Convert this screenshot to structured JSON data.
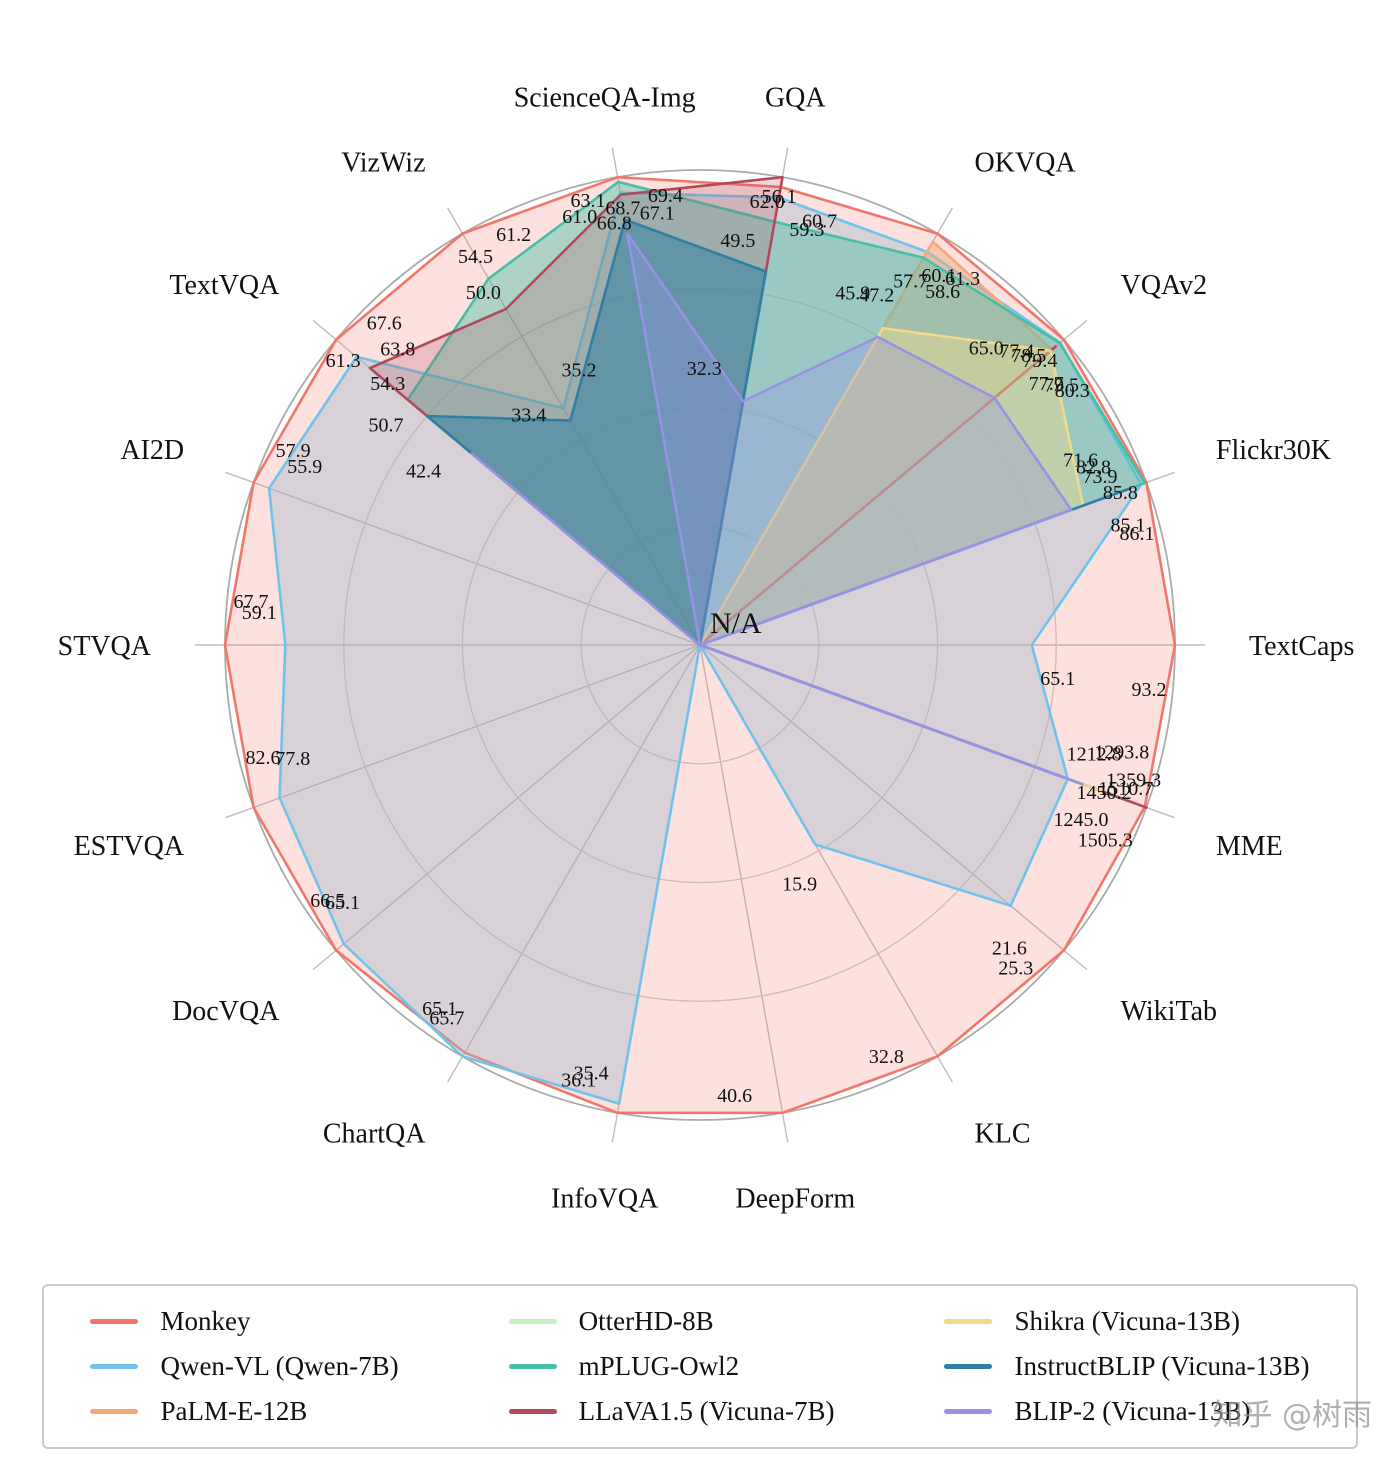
{
  "watermark": "知乎 @树雨",
  "chart_data": {
    "type": "radar",
    "title": "",
    "grid": true,
    "rings": 4,
    "start_angle_deg": 100,
    "center_annotation": "N/A",
    "legend_position": "bottom",
    "axes": [
      "ScienceQA-Img",
      "GQA",
      "OKVQA",
      "VQAv2",
      "Flickr30K",
      "TextCaps",
      "MME",
      "WikiTab",
      "KLC",
      "DeepForm",
      "InfoVQA",
      "ChartQA",
      "DocVQA",
      "ESTVQA",
      "STVQA",
      "AI2D",
      "TextVQA",
      "VizWiz"
    ],
    "series": [
      {
        "name": "Monkey",
        "color": "#F2766B",
        "fill_opacity": 0.22,
        "values": [
          69.4,
          60.7,
          61.3,
          80.3,
          86.1,
          93.2,
          1505.3,
          25.3,
          32.8,
          40.6,
          36.1,
          65.1,
          66.5,
          82.6,
          67.7,
          57.9,
          67.6,
          61.2
        ]
      },
      {
        "name": "Qwen-VL (Qwen-7B)",
        "color": "#72C3EC",
        "fill_opacity": 0.38,
        "fill": "#9DB9CC",
        "values": [
          67.1,
          59.3,
          58.6,
          79.5,
          85.1,
          65.1,
          1245.0,
          21.6,
          15.9,
          null,
          35.4,
          65.7,
          65.1,
          77.8,
          59.1,
          55.9,
          63.8,
          35.2
        ]
      },
      {
        "name": "PaLM-E-12B",
        "color": "#F5A878",
        "fill_opacity": 0.45,
        "values": [
          null,
          null,
          60.1,
          77.7,
          null,
          null,
          null,
          null,
          null,
          null,
          null,
          null,
          null,
          null,
          null,
          null,
          null,
          null
        ]
      },
      {
        "name": "OtterHD-8B",
        "color": "#C9EDC5",
        "fill_opacity": 0.4,
        "values": [
          null,
          null,
          null,
          null,
          null,
          null,
          null,
          null,
          null,
          null,
          null,
          null,
          null,
          null,
          null,
          null,
          null,
          null
        ]
      },
      {
        "name": "mPLUG-Owl2",
        "color": "#45BFA7",
        "fill_opacity": 0.42,
        "values": [
          68.7,
          56.1,
          57.7,
          79.4,
          85.8,
          null,
          1450.2,
          null,
          null,
          null,
          null,
          null,
          null,
          null,
          null,
          null,
          54.3,
          54.5
        ]
      },
      {
        "name": "LLaVA1.5 (Vicuna-7B)",
        "color": "#B04A5A",
        "fill_opacity": 0.22,
        "values": [
          66.8,
          62.0,
          null,
          78.5,
          null,
          null,
          1510.7,
          null,
          null,
          null,
          null,
          null,
          null,
          null,
          null,
          null,
          61.3,
          50.0
        ]
      },
      {
        "name": "Shikra (Vicuna-13B)",
        "color": "#F0DA8C",
        "fill_opacity": 0.45,
        "values": [
          null,
          null,
          47.2,
          77.4,
          73.9,
          null,
          1359.3,
          null,
          null,
          null,
          null,
          null,
          null,
          null,
          null,
          null,
          null,
          null
        ]
      },
      {
        "name": "InstructBLIP (Vicuna-13B)",
        "color": "#2E7FA3",
        "fill_opacity": 0.52,
        "values": [
          63.1,
          49.5,
          null,
          null,
          82.8,
          null,
          1212.8,
          null,
          null,
          null,
          null,
          null,
          null,
          null,
          null,
          null,
          50.7,
          33.4
        ]
      },
      {
        "name": "BLIP-2 (Vicuna-13B)",
        "color": "#9792E6",
        "fill_opacity": 0.32,
        "values": [
          61.0,
          32.3,
          45.9,
          65.0,
          71.6,
          null,
          1293.8,
          null,
          null,
          null,
          null,
          null,
          null,
          null,
          null,
          null,
          42.4,
          null
        ]
      }
    ]
  }
}
